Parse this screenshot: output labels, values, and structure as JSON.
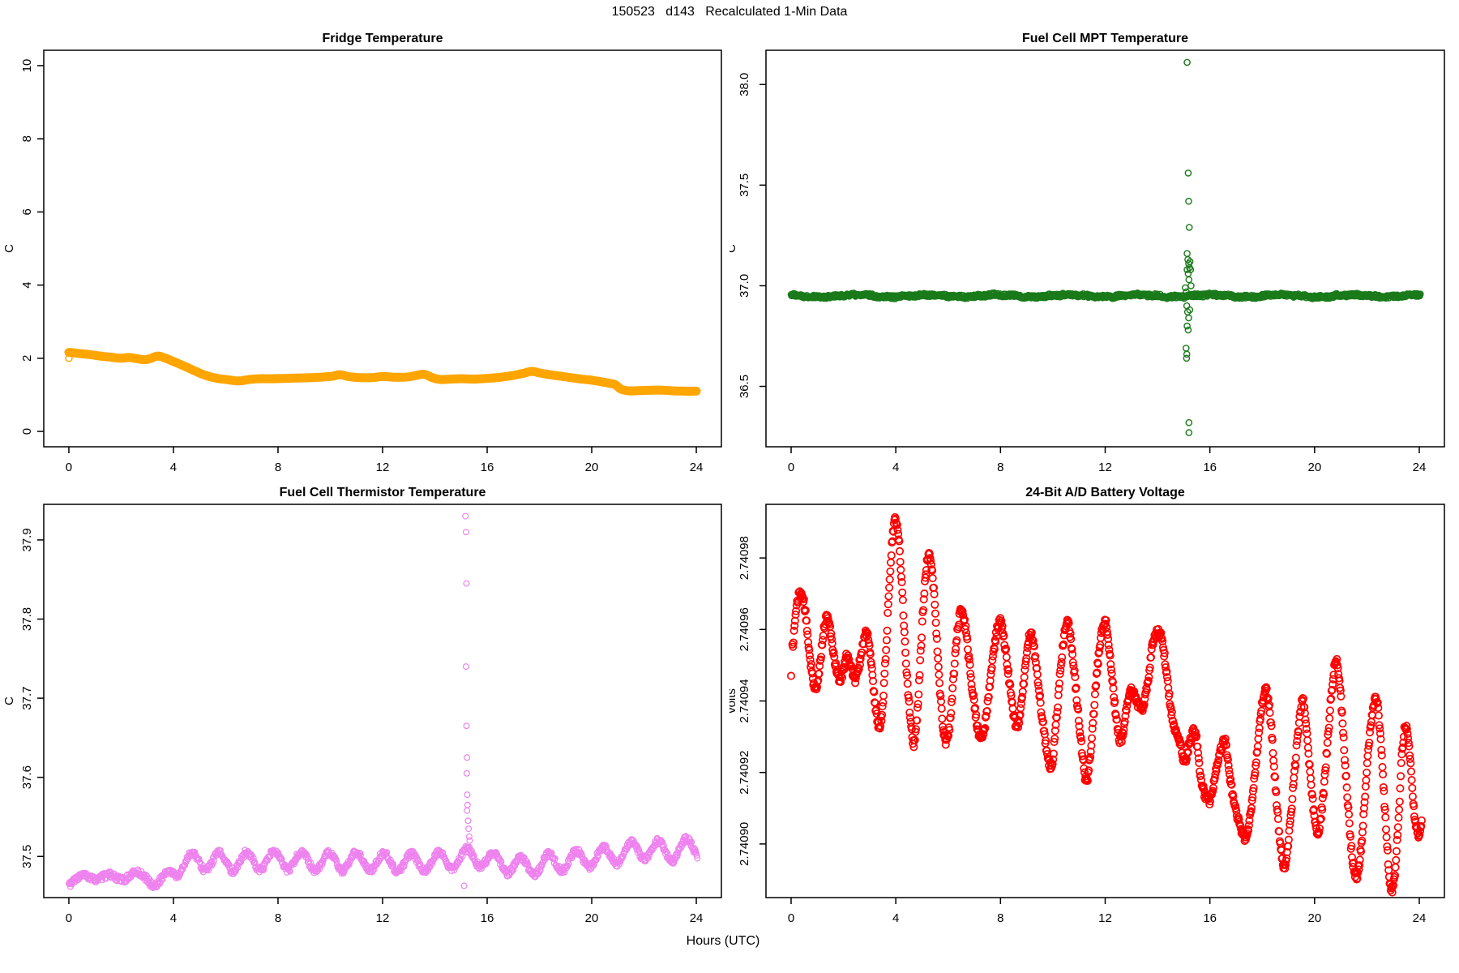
{
  "figure": {
    "title": "150523   d143   Recalculated 1-Min Data",
    "xlabel": "Hours (UTC)",
    "background": "#ffffff",
    "text_color": "#000000"
  },
  "chart_data": [
    {
      "id": "fridge-temperature",
      "type": "line",
      "title": "Fridge Temperature",
      "ylabel": "C",
      "color": "#FFA500",
      "xlim": [
        -0.96,
        24.96
      ],
      "ylim": [
        -0.42,
        10.42
      ],
      "xticks": [
        0,
        4,
        8,
        12,
        16,
        20,
        24
      ],
      "xtick_labels": [
        "0",
        "4",
        "8",
        "12",
        "16",
        "20",
        "24"
      ],
      "yticks": [
        0,
        2,
        4,
        6,
        8,
        10
      ],
      "ytick_labels": [
        "0",
        "2",
        "4",
        "6",
        "8",
        "10"
      ],
      "line_width": 11,
      "sample_step": 0.04,
      "marker_radius": 4,
      "marker_stroke": 1.5,
      "seed": 11,
      "points": [
        [
          0,
          2.16
        ],
        [
          0.4,
          2.13
        ],
        [
          0.8,
          2.1
        ],
        [
          1.2,
          2.06
        ],
        [
          1.6,
          2.03
        ],
        [
          2.0,
          2.0
        ],
        [
          2.3,
          2.02
        ],
        [
          2.6,
          1.99
        ],
        [
          2.9,
          1.96
        ],
        [
          3.1,
          1.99
        ],
        [
          3.4,
          2.06
        ],
        [
          3.7,
          2.0
        ],
        [
          4.0,
          1.91
        ],
        [
          4.4,
          1.79
        ],
        [
          4.8,
          1.66
        ],
        [
          5.2,
          1.54
        ],
        [
          5.6,
          1.46
        ],
        [
          6.0,
          1.42
        ],
        [
          6.5,
          1.38
        ],
        [
          6.9,
          1.42
        ],
        [
          7.3,
          1.44
        ],
        [
          7.8,
          1.44
        ],
        [
          8.3,
          1.45
        ],
        [
          8.8,
          1.46
        ],
        [
          9.3,
          1.47
        ],
        [
          9.8,
          1.49
        ],
        [
          10.1,
          1.51
        ],
        [
          10.35,
          1.55
        ],
        [
          10.7,
          1.5
        ],
        [
          11.1,
          1.47
        ],
        [
          11.6,
          1.47
        ],
        [
          12.0,
          1.5
        ],
        [
          12.5,
          1.48
        ],
        [
          13.0,
          1.49
        ],
        [
          13.35,
          1.54
        ],
        [
          13.6,
          1.56
        ],
        [
          13.9,
          1.47
        ],
        [
          14.2,
          1.42
        ],
        [
          14.6,
          1.43
        ],
        [
          15.0,
          1.44
        ],
        [
          15.5,
          1.43
        ],
        [
          16.0,
          1.45
        ],
        [
          16.5,
          1.48
        ],
        [
          17.0,
          1.53
        ],
        [
          17.4,
          1.59
        ],
        [
          17.7,
          1.64
        ],
        [
          18.0,
          1.6
        ],
        [
          18.4,
          1.55
        ],
        [
          18.8,
          1.51
        ],
        [
          19.2,
          1.47
        ],
        [
          19.6,
          1.43
        ],
        [
          20.0,
          1.4
        ],
        [
          20.5,
          1.34
        ],
        [
          20.9,
          1.28
        ],
        [
          21.1,
          1.16
        ],
        [
          21.4,
          1.11
        ],
        [
          22.0,
          1.12
        ],
        [
          22.6,
          1.13
        ],
        [
          23.1,
          1.11
        ],
        [
          23.6,
          1.1
        ],
        [
          24.0,
          1.1
        ]
      ],
      "outliers": [
        [
          0,
          2.0
        ]
      ]
    },
    {
      "id": "fuel-cell-mpt-temperature",
      "type": "scatter-band",
      "title": "Fuel Cell MPT Temperature",
      "ylabel": "C",
      "color": "#1A7A1A",
      "xlim": [
        -0.96,
        24.96
      ],
      "ylim": [
        36.2,
        38.17
      ],
      "xticks": [
        0,
        4,
        8,
        12,
        16,
        20,
        24
      ],
      "xtick_labels": [
        "0",
        "4",
        "8",
        "12",
        "16",
        "20",
        "24"
      ],
      "yticks": [
        36.5,
        37.0,
        37.5,
        38.0
      ],
      "ytick_labels": [
        "36.5",
        "37.0",
        "37.5",
        "38.0"
      ],
      "band": {
        "mean": 36.95,
        "noise": 0.008,
        "wiggle_amp": 0.005,
        "wiggle_period": 2.7
      },
      "sample_step": 0.02,
      "marker_radius": 3.6,
      "marker_stroke": 1.4,
      "seed": 22,
      "outliers": [
        [
          15.13,
          38.11
        ],
        [
          15.17,
          37.56
        ],
        [
          15.19,
          37.42
        ],
        [
          15.21,
          37.29
        ],
        [
          15.13,
          37.16
        ],
        [
          15.16,
          37.13
        ],
        [
          15.19,
          37.11
        ],
        [
          15.13,
          37.08
        ],
        [
          15.17,
          37.06
        ],
        [
          15.22,
          37.09
        ],
        [
          15.24,
          37.12
        ],
        [
          15.26,
          37.08
        ],
        [
          15.2,
          37.03
        ],
        [
          15.28,
          37.0
        ],
        [
          15.06,
          36.99
        ],
        [
          15.1,
          36.97
        ],
        [
          15.12,
          36.9
        ],
        [
          15.15,
          36.87
        ],
        [
          15.19,
          36.84
        ],
        [
          15.23,
          36.88
        ],
        [
          15.13,
          36.8
        ],
        [
          15.17,
          36.78
        ],
        [
          15.09,
          36.69
        ],
        [
          15.12,
          36.66
        ],
        [
          15.11,
          36.64
        ],
        [
          15.2,
          36.32
        ],
        [
          15.2,
          36.27
        ]
      ]
    },
    {
      "id": "fuel-cell-thermistor-temperature",
      "type": "scatter-wave",
      "title": "Fuel Cell Thermistor Temperature",
      "ylabel": "C",
      "color": "#EE82EE",
      "xlim": [
        -0.96,
        24.96
      ],
      "ylim": [
        37.448,
        37.945
      ],
      "xticks": [
        0,
        4,
        8,
        12,
        16,
        20,
        24
      ],
      "xtick_labels": [
        "0",
        "4",
        "8",
        "12",
        "16",
        "20",
        "24"
      ],
      "yticks": [
        37.5,
        37.6,
        37.7,
        37.8,
        37.9
      ],
      "ytick_labels": [
        "37.5",
        "37.6",
        "37.7",
        "37.8",
        "37.9"
      ],
      "base": [
        [
          0,
          37.469
        ],
        [
          0.5,
          37.472
        ],
        [
          1,
          37.475
        ],
        [
          1.5,
          37.473
        ],
        [
          2,
          37.474
        ],
        [
          2.5,
          37.476
        ],
        [
          3,
          37.474
        ],
        [
          3.3,
          37.465
        ],
        [
          3.6,
          37.47
        ],
        [
          4,
          37.483
        ],
        [
          4.5,
          37.492
        ],
        [
          5,
          37.494
        ],
        [
          6,
          37.493
        ],
        [
          7,
          37.494
        ],
        [
          8,
          37.495
        ],
        [
          9,
          37.494
        ],
        [
          10,
          37.493
        ],
        [
          11,
          37.494
        ],
        [
          12,
          37.493
        ],
        [
          13,
          37.492
        ],
        [
          14,
          37.494
        ],
        [
          15,
          37.496
        ],
        [
          15.4,
          37.5
        ],
        [
          16,
          37.496
        ],
        [
          16.5,
          37.492
        ],
        [
          17,
          37.489
        ],
        [
          17.5,
          37.487
        ],
        [
          18,
          37.49
        ],
        [
          18.5,
          37.492
        ],
        [
          19,
          37.494
        ],
        [
          19.5,
          37.496
        ],
        [
          20,
          37.499
        ],
        [
          20.5,
          37.5
        ],
        [
          21,
          37.503
        ],
        [
          21.5,
          37.506
        ],
        [
          22,
          37.509
        ],
        [
          22.5,
          37.508
        ],
        [
          23,
          37.506
        ],
        [
          23.5,
          37.509
        ],
        [
          24,
          37.512
        ]
      ],
      "amp_profile": [
        [
          0,
          0.004
        ],
        [
          3,
          0.004
        ],
        [
          3.6,
          0.006
        ],
        [
          4.2,
          0.011
        ],
        [
          15,
          0.011
        ],
        [
          24,
          0.012
        ]
      ],
      "period": 1.05,
      "phase": -1.42,
      "noise": 0.004,
      "sample_step": 0.02,
      "marker_radius": 3.4,
      "marker_stroke": 1.2,
      "seed": 33,
      "outliers": [
        [
          15.17,
          37.93
        ],
        [
          15.19,
          37.91
        ],
        [
          15.21,
          37.845
        ],
        [
          15.19,
          37.74
        ],
        [
          15.21,
          37.665
        ],
        [
          15.23,
          37.625
        ],
        [
          15.22,
          37.605
        ],
        [
          15.24,
          37.578
        ],
        [
          15.25,
          37.565
        ],
        [
          15.23,
          37.558
        ],
        [
          15.27,
          37.545
        ],
        [
          15.29,
          37.535
        ],
        [
          15.31,
          37.525
        ],
        [
          15.33,
          37.52
        ],
        [
          15.12,
          37.463
        ]
      ]
    },
    {
      "id": "battery-voltage",
      "type": "scatter-smooth",
      "title": "24-Bit A/D Battery Voltage",
      "ylabel": "volts",
      "color": "#FF0000",
      "xlim": [
        -0.96,
        24.96
      ],
      "ylim": [
        2.740885,
        2.740995
      ],
      "xticks": [
        0,
        4,
        8,
        12,
        16,
        20,
        24
      ],
      "xtick_labels": [
        "0",
        "4",
        "8",
        "12",
        "16",
        "20",
        "24"
      ],
      "yticks": [
        2.7409,
        2.74092,
        2.74094,
        2.74096,
        2.74098
      ],
      "ytick_labels": [
        "2.74090",
        "2.74092",
        "2.74094",
        "2.74096",
        "2.74098"
      ],
      "noise": 1.2e-06,
      "sample_step": 0.02,
      "marker_radius": 4.2,
      "marker_stroke": 1.7,
      "seed": 44,
      "points": [
        [
          0.05,
          2.740955
        ],
        [
          0.2,
          2.740966
        ],
        [
          0.35,
          2.74097
        ],
        [
          0.5,
          2.740967
        ],
        [
          0.65,
          2.740957
        ],
        [
          0.8,
          2.740948
        ],
        [
          0.95,
          2.740943
        ],
        [
          1.1,
          2.74095
        ],
        [
          1.25,
          2.74096
        ],
        [
          1.4,
          2.740963
        ],
        [
          1.55,
          2.740957
        ],
        [
          1.7,
          2.74095
        ],
        [
          1.85,
          2.740946
        ],
        [
          2.0,
          2.740949
        ],
        [
          2.15,
          2.740953
        ],
        [
          2.3,
          2.740949
        ],
        [
          2.45,
          2.740946
        ],
        [
          2.6,
          2.74095
        ],
        [
          2.75,
          2.740956
        ],
        [
          2.9,
          2.740959
        ],
        [
          3.05,
          2.740951
        ],
        [
          3.2,
          2.74094
        ],
        [
          3.35,
          2.740933
        ],
        [
          3.5,
          2.740939
        ],
        [
          3.65,
          2.740958
        ],
        [
          3.8,
          2.740978
        ],
        [
          3.95,
          2.74099
        ],
        [
          4.1,
          2.740986
        ],
        [
          4.25,
          2.74097
        ],
        [
          4.4,
          2.74095
        ],
        [
          4.55,
          2.740936
        ],
        [
          4.7,
          2.740928
        ],
        [
          4.85,
          2.74094
        ],
        [
          5.0,
          2.74096
        ],
        [
          5.15,
          2.740976
        ],
        [
          5.3,
          2.74098
        ],
        [
          5.45,
          2.740971
        ],
        [
          5.6,
          2.740953
        ],
        [
          5.75,
          2.740937
        ],
        [
          5.9,
          2.740929
        ],
        [
          6.05,
          2.740933
        ],
        [
          6.2,
          2.740946
        ],
        [
          6.35,
          2.740959
        ],
        [
          6.5,
          2.740965
        ],
        [
          6.65,
          2.740961
        ],
        [
          6.8,
          2.740951
        ],
        [
          7.0,
          2.740939
        ],
        [
          7.2,
          2.74093
        ],
        [
          7.4,
          2.740933
        ],
        [
          7.6,
          2.740945
        ],
        [
          7.8,
          2.740957
        ],
        [
          8.0,
          2.740962
        ],
        [
          8.2,
          2.740954
        ],
        [
          8.4,
          2.740942
        ],
        [
          8.6,
          2.740933
        ],
        [
          8.8,
          2.740939
        ],
        [
          9.0,
          2.740953
        ],
        [
          9.15,
          2.740959
        ],
        [
          9.35,
          2.740951
        ],
        [
          9.55,
          2.740938
        ],
        [
          9.75,
          2.740927
        ],
        [
          9.95,
          2.740922
        ],
        [
          10.15,
          2.740936
        ],
        [
          10.35,
          2.740953
        ],
        [
          10.55,
          2.740962
        ],
        [
          10.75,
          2.740953
        ],
        [
          10.95,
          2.740938
        ],
        [
          11.15,
          2.740924
        ],
        [
          11.3,
          2.740918
        ],
        [
          11.5,
          2.740931
        ],
        [
          11.7,
          2.740949
        ],
        [
          11.9,
          2.74096
        ],
        [
          12.05,
          2.740961
        ],
        [
          12.25,
          2.740948
        ],
        [
          12.45,
          2.740934
        ],
        [
          12.6,
          2.740929
        ],
        [
          12.8,
          2.740937
        ],
        [
          13.0,
          2.740943
        ],
        [
          13.2,
          2.74094
        ],
        [
          13.4,
          2.740938
        ],
        [
          13.6,
          2.740944
        ],
        [
          13.8,
          2.740955
        ],
        [
          14.0,
          2.740959
        ],
        [
          14.2,
          2.740956
        ],
        [
          14.4,
          2.740944
        ],
        [
          14.6,
          2.740934
        ],
        [
          14.85,
          2.740929
        ],
        [
          15.05,
          2.740923
        ],
        [
          15.25,
          2.740929
        ],
        [
          15.45,
          2.740931
        ],
        [
          15.65,
          2.740919
        ],
        [
          15.85,
          2.740913
        ],
        [
          16.05,
          2.740913
        ],
        [
          16.25,
          2.740921
        ],
        [
          16.45,
          2.740927
        ],
        [
          16.6,
          2.740928
        ],
        [
          16.8,
          2.740917
        ],
        [
          17.0,
          2.740909
        ],
        [
          17.2,
          2.740904
        ],
        [
          17.4,
          2.740902
        ],
        [
          17.6,
          2.740911
        ],
        [
          17.8,
          2.740926
        ],
        [
          18.0,
          2.740939
        ],
        [
          18.15,
          2.740943
        ],
        [
          18.35,
          2.740932
        ],
        [
          18.55,
          2.740912
        ],
        [
          18.7,
          2.740899
        ],
        [
          18.85,
          2.740894
        ],
        [
          19.0,
          2.740901
        ],
        [
          19.2,
          2.740917
        ],
        [
          19.4,
          2.740933
        ],
        [
          19.55,
          2.74094
        ],
        [
          19.7,
          2.740931
        ],
        [
          19.9,
          2.740914
        ],
        [
          20.1,
          2.740903
        ],
        [
          20.3,
          2.740911
        ],
        [
          20.5,
          2.740929
        ],
        [
          20.7,
          2.740946
        ],
        [
          20.85,
          2.740951
        ],
        [
          21.0,
          2.740941
        ],
        [
          21.2,
          2.740919
        ],
        [
          21.4,
          2.740899
        ],
        [
          21.6,
          2.740891
        ],
        [
          21.8,
          2.740901
        ],
        [
          22.0,
          2.740921
        ],
        [
          22.2,
          2.740936
        ],
        [
          22.35,
          2.740941
        ],
        [
          22.5,
          2.740931
        ],
        [
          22.7,
          2.740908
        ],
        [
          22.9,
          2.740888
        ],
        [
          23.05,
          2.740891
        ],
        [
          23.2,
          2.740906
        ],
        [
          23.35,
          2.740926
        ],
        [
          23.5,
          2.740933
        ],
        [
          23.65,
          2.740924
        ],
        [
          23.8,
          2.740909
        ],
        [
          23.95,
          2.740903
        ],
        [
          24.1,
          2.740906
        ]
      ],
      "isolated_points": [
        [
          0,
          2.740947
        ]
      ]
    }
  ]
}
